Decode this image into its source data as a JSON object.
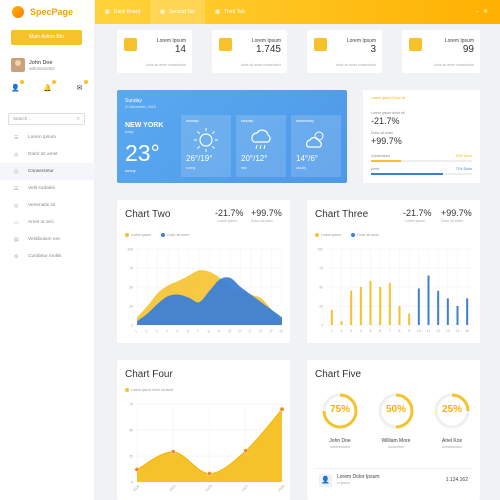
{
  "app": {
    "logo_text": "SpecPage"
  },
  "sidebar": {
    "main_button": "Main Action Btn",
    "user": {
      "name": "John Doe",
      "role": "administrator"
    },
    "icons": [
      "user-icon",
      "bell-icon",
      "mail-icon"
    ],
    "search_placeholder": "Search...",
    "menu": [
      "Lorem Ipsum",
      "Dolor sit amet",
      "Consectetur",
      "Velit sodales",
      "Venenatis sit",
      "Amet ut orci",
      "Vestibulum nec",
      "Curabitur mollis"
    ]
  },
  "tabs": [
    "Dash Board",
    "Second Tab",
    "Third Tab"
  ],
  "stats": [
    {
      "label": "Lorem Ipsum",
      "value": "14",
      "sub": "dolor sit amet consectetur"
    },
    {
      "label": "Lorem Ipsum",
      "value": "1.745",
      "sub": "dolor sit amet consectetur"
    },
    {
      "label": "Lorem Ipsum",
      "value": "3",
      "sub": "dolor sit amet consectetur"
    },
    {
      "label": "Lorem Ipsum",
      "value": "99",
      "sub": "dolor sit amet consectetur"
    }
  ],
  "weather": {
    "day": "Sunday",
    "date": "21 November, 2018",
    "city": "NEW YORK",
    "city_sub": "today",
    "temp": "23°",
    "cond": "sunny",
    "forecast": [
      {
        "name": "monday",
        "temp": "26°/19°",
        "cond": "sunny"
      },
      {
        "name": "tuesday",
        "temp": "20°/12°",
        "cond": "rain"
      },
      {
        "name": "wednesday",
        "temp": "14°/6°",
        "cond": "cloudy"
      }
    ]
  },
  "side_stats": {
    "title": "Lorem Ipsum Dolor sit",
    "items": [
      {
        "label": "Lorem ipsum dolor sit",
        "value": "-21.7%"
      },
      {
        "label": "Dolor sit amet",
        "value": "+99.7%"
      }
    ],
    "bars": [
      {
        "label": "Consectetur",
        "value_label": "30% Dolor",
        "progress": 0.3,
        "color": "#f6c22c"
      },
      {
        "label": "Amet",
        "value_label": "71% Dolor",
        "progress": 0.71,
        "color": "#3e7fd6"
      }
    ]
  },
  "charts": {
    "two": {
      "title": "Chart Two",
      "stat1": "-21.7%",
      "stat1_label": "Lorem ipsum",
      "stat2": "+99.7%",
      "stat2_label": "Dolor sit amet",
      "legend": [
        "Lorem ipsum",
        "Dolor sit amet"
      ]
    },
    "three": {
      "title": "Chart Three",
      "stat1": "-21.7%",
      "stat1_label": "Lorem ipsum",
      "stat2": "+99.7%",
      "stat2_label": "Dolor sit amet",
      "legend": [
        "Lorem ipsum",
        "Dolor sit amet"
      ]
    },
    "four": {
      "title": "Chart Four",
      "legend": [
        "Lorem ipsum dolor sit amet"
      ]
    },
    "five": {
      "title": "Chart Five",
      "pies": [
        {
          "value": "75%",
          "fraction": 0.75,
          "name": "John Doe",
          "role": "administrator"
        },
        {
          "value": "50%",
          "fraction": 0.5,
          "name": "William More",
          "role": "subscriber"
        },
        {
          "value": "25%",
          "fraction": 0.25,
          "name": "Ariel Kos",
          "role": "administrator"
        }
      ],
      "footer": {
        "name": "Lorem Dolor Ipsum",
        "sub": "in ipsum",
        "value": "1.124.162"
      }
    }
  },
  "chart_data": [
    {
      "type": "area",
      "title": "Chart Two",
      "x": [
        1,
        2,
        3,
        4,
        5,
        6,
        7,
        8,
        9,
        10,
        11,
        12,
        13,
        14,
        15
      ],
      "ylim": [
        0,
        100
      ],
      "yticks": [
        0,
        25,
        50,
        75,
        100
      ],
      "series": [
        {
          "name": "Lorem ipsum",
          "color": "#f6c22c",
          "values": [
            10,
            25,
            42,
            52,
            58,
            65,
            72,
            70,
            62,
            50,
            45,
            40,
            35,
            20,
            5
          ]
        },
        {
          "name": "Dolor sit amet",
          "color": "#3e7fd6",
          "values": [
            5,
            15,
            28,
            38,
            40,
            36,
            30,
            45,
            60,
            62,
            50,
            40,
            30,
            20,
            10
          ]
        }
      ]
    },
    {
      "type": "bar",
      "title": "Chart Three",
      "categories": [
        "1",
        "2",
        "3",
        "4",
        "5",
        "6",
        "7",
        "8",
        "9",
        "10",
        "11",
        "12",
        "13",
        "14",
        "15"
      ],
      "ylim": [
        0,
        100
      ],
      "yticks": [
        0,
        25,
        50,
        75,
        100
      ],
      "series": [
        {
          "name": "Lorem ipsum",
          "color": "#f6c22c",
          "values": [
            20,
            5,
            45,
            50,
            58,
            50,
            55,
            25,
            15,
            0,
            0,
            0,
            0,
            0,
            0
          ]
        },
        {
          "name": "Dolor sit amet",
          "color": "#3e7fd6",
          "values": [
            0,
            0,
            0,
            0,
            0,
            0,
            0,
            0,
            0,
            48,
            65,
            45,
            35,
            25,
            35
          ]
        }
      ]
    },
    {
      "type": "area",
      "title": "Chart Four",
      "x": [
        "2004",
        "2005",
        "2006",
        "2007",
        "2008"
      ],
      "ylim": [
        0,
        75
      ],
      "yticks": [
        0,
        25,
        50,
        75
      ],
      "series": [
        {
          "name": "Lorem ipsum dolor sit amet",
          "color": "#f6c22c",
          "values": [
            12,
            29,
            8,
            30,
            70
          ]
        }
      ]
    }
  ]
}
